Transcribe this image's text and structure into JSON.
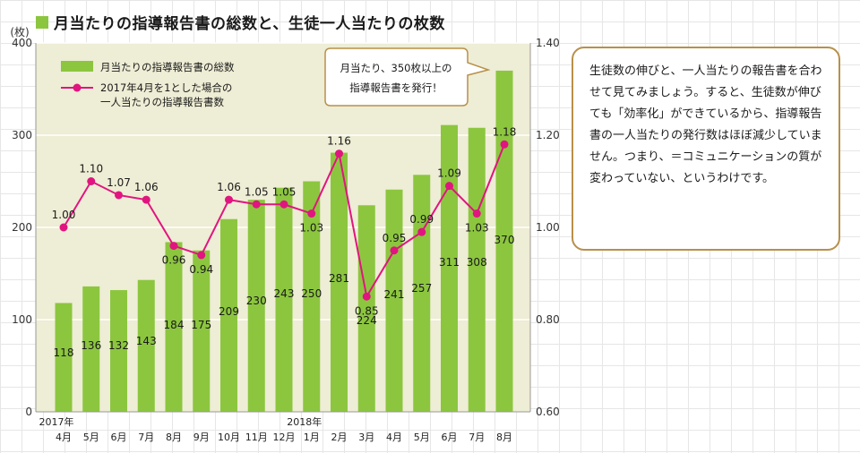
{
  "title": "月当たりの指導報告書の総数と、生徒一人当たりの枚数",
  "note": "生徒数の伸びと、一人当たりの報告書を合わせて見てみましょう。すると、生徒数が伸びても「効率化」ができているから、指導報告書の一人当たりの発行数はほぼ減少していません。つまり、＝コミュニケーションの質が変わっていない、というわけです。",
  "chart_data": {
    "type": "bar",
    "y_unit_label": "(枚)",
    "categories": [
      "4月",
      "5月",
      "6月",
      "7月",
      "8月",
      "9月",
      "10月",
      "11月",
      "12月",
      "1月",
      "2月",
      "3月",
      "4月",
      "5月",
      "6月",
      "7月",
      "8月"
    ],
    "year_labels": [
      {
        "index": 0,
        "text": "2017年"
      },
      {
        "index": 9,
        "text": "2018年"
      }
    ],
    "series": [
      {
        "name": "月当たりの指導報告書の総数",
        "type": "bar",
        "axis": "left",
        "values": [
          118,
          136,
          132,
          143,
          184,
          175,
          209,
          230,
          243,
          250,
          281,
          224,
          241,
          257,
          311,
          308,
          370
        ],
        "labels": [
          "118",
          "136",
          "132",
          "143",
          "184",
          "175",
          "209",
          "230",
          "243",
          "250",
          "281",
          "224",
          "241",
          "257",
          "311",
          "308",
          "370"
        ]
      },
      {
        "name": "2017年4月を1とした場合の一人当たりの指導報告書数",
        "name_lines": [
          "2017年4月を1とした場合の",
          "一人当たりの指導報告書数"
        ],
        "type": "line",
        "axis": "right",
        "values": [
          1.0,
          1.1,
          1.07,
          1.06,
          0.96,
          0.94,
          1.06,
          1.05,
          1.05,
          1.03,
          1.16,
          0.85,
          0.95,
          0.99,
          1.09,
          1.03,
          1.18
        ],
        "labels": [
          "1.00",
          "1.10",
          "1.07",
          "1.06",
          "0.96",
          "0.94",
          "1.06",
          "1.05",
          "1.05",
          "1.03",
          "1.16",
          "0.85",
          "0.95",
          "0.99",
          "1.09",
          "1.03",
          "1.18"
        ]
      }
    ],
    "y_left": {
      "range": [
        0,
        400
      ],
      "ticks": [
        0,
        100,
        200,
        300,
        400
      ],
      "tick_labels": [
        "0",
        "100",
        "200",
        "300",
        "400"
      ]
    },
    "y_right": {
      "range": [
        0.6,
        1.4
      ],
      "ticks": [
        0.6,
        0.8,
        1.0,
        1.2,
        1.4
      ],
      "tick_labels": [
        "0.60",
        "0.80",
        "1.00",
        "1.20",
        "1.40"
      ]
    },
    "callout_lines": [
      "月当たり、350枚以上の",
      "指導報告書を発行！"
    ],
    "colors": {
      "bar": "#8cc63f",
      "line": "#e0157f",
      "plot_bg": "#eeedd5",
      "grid": "#ffffff"
    },
    "grid": true,
    "legend_position": "top-left"
  }
}
